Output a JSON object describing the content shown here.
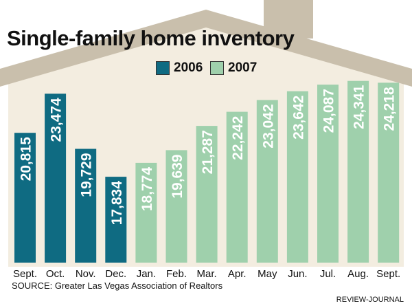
{
  "chart_data": {
    "type": "bar",
    "title": "Single-family home inventory",
    "categories": [
      "Sept.",
      "Oct.",
      "Nov.",
      "Dec.",
      "Jan.",
      "Feb.",
      "Mar.",
      "Apr.",
      "May",
      "Jun.",
      "Jul.",
      "Aug.",
      "Sept."
    ],
    "values": [
      20815,
      23474,
      19729,
      17834,
      18774,
      19639,
      21287,
      22242,
      23042,
      23642,
      24087,
      24341,
      24218
    ],
    "value_labels": [
      "20,815",
      "23,474",
      "19,729",
      "17,834",
      "18,774",
      "19,639",
      "21,287",
      "22,242",
      "23,042",
      "23,642",
      "24,087",
      "24,341",
      "24,218"
    ],
    "series_of_point": [
      "2006",
      "2006",
      "2006",
      "2006",
      "2007",
      "2007",
      "2007",
      "2007",
      "2007",
      "2007",
      "2007",
      "2007",
      "2007"
    ],
    "legend": [
      {
        "name": "2006",
        "color": "#0f6b82"
      },
      {
        "name": "2007",
        "color": "#9fd0ac"
      }
    ],
    "ylim": [
      0,
      25000
    ],
    "xlabel": "",
    "ylabel": "",
    "grid": false,
    "legend_position": "top-center"
  },
  "footer": {
    "source": "SOURCE: Greater Las Vegas Association of Realtors",
    "credit": "REVIEW-JOURNAL"
  },
  "colors": {
    "house_fill": "#f3ede0",
    "roof": "#c9bfac",
    "chimney": "#c9bfac",
    "bar_2006": "#0f6b82",
    "bar_2007": "#9fd0ac",
    "label_text": "#ffffff"
  }
}
